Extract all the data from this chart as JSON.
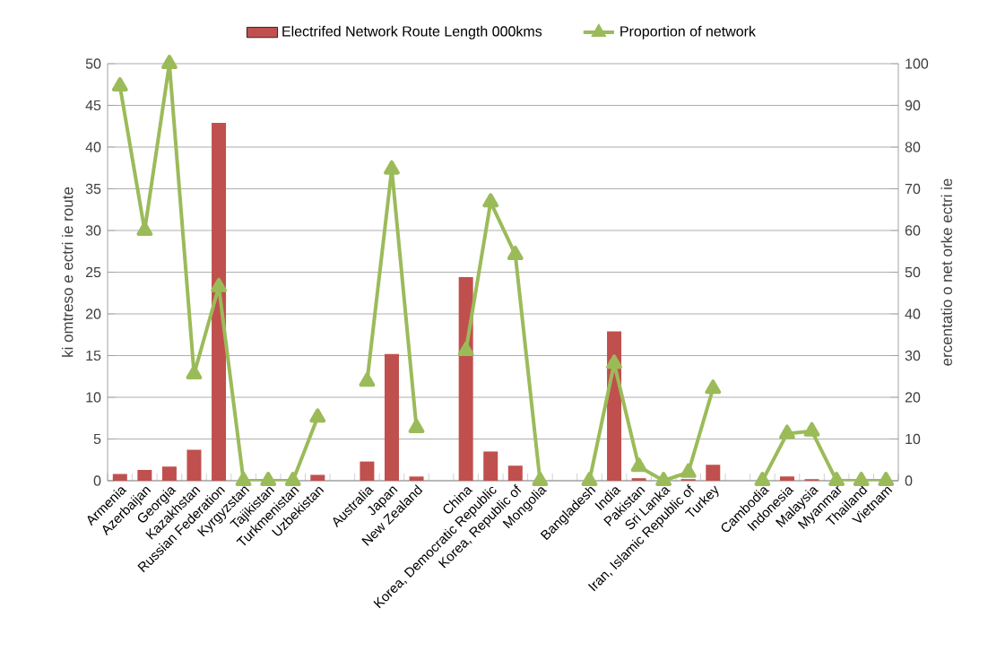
{
  "chart_data": {
    "type": "bar",
    "ylabel": "ki omtreso e ectri ie route",
    "y2label": "ercentatio o net orke ectri ie",
    "categories": [
      "Armenia",
      "Azerbaijan",
      "Georgia",
      "Kazakhstan",
      "Russian Federation",
      "Kyrgyzstan",
      "Tajikistan",
      "Turkmenistan",
      "Uzbekistan",
      null,
      "Australia",
      "Japan",
      "New Zealand",
      null,
      "China",
      "Korea, Democratic Republic",
      "Korea, Republic of",
      "Mongolia",
      null,
      "Bangladesh",
      "India",
      "Pakistan",
      "Sri Lanka",
      "Iran, Islamic Republic of",
      "Turkey",
      null,
      "Cambodia",
      "Indonesia",
      "Malaysia",
      "Myanmar",
      "Thailand",
      "Vietnam"
    ],
    "series": [
      {
        "name": "Electrifed Network Route Length    000kms",
        "color": "#c0504d",
        "values": [
          0.8,
          1.3,
          1.7,
          3.7,
          42.9,
          0,
          0,
          0,
          0.7,
          null,
          2.3,
          15.2,
          0.5,
          null,
          24.4,
          3.5,
          1.8,
          0,
          null,
          0,
          17.9,
          0.3,
          0,
          0.2,
          1.9,
          null,
          0,
          0.5,
          0.2,
          0,
          0,
          0
        ]
      },
      {
        "name": "Proportion of network",
        "type": "line",
        "axis": "y2",
        "color": "#9bbb59",
        "marker": "triangle",
        "values": [
          94.6,
          60,
          100,
          25.6,
          46.5,
          0,
          0,
          0,
          15.2,
          null,
          23.8,
          74.7,
          12.7,
          null,
          31.2,
          66.8,
          54.2,
          0,
          null,
          0,
          28.1,
          3.4,
          0,
          2,
          22.1,
          null,
          0,
          11.3,
          11.9,
          0,
          0,
          0
        ]
      }
    ],
    "ylim": [
      0,
      50
    ],
    "yticks": [
      0,
      5,
      10,
      15,
      20,
      25,
      30,
      35,
      40,
      45,
      50
    ],
    "y2lim": [
      0,
      100
    ],
    "y2ticks": [
      0,
      10,
      20,
      30,
      40,
      50,
      60,
      70,
      80,
      90,
      100
    ],
    "grid": "y",
    "legend": "top"
  }
}
